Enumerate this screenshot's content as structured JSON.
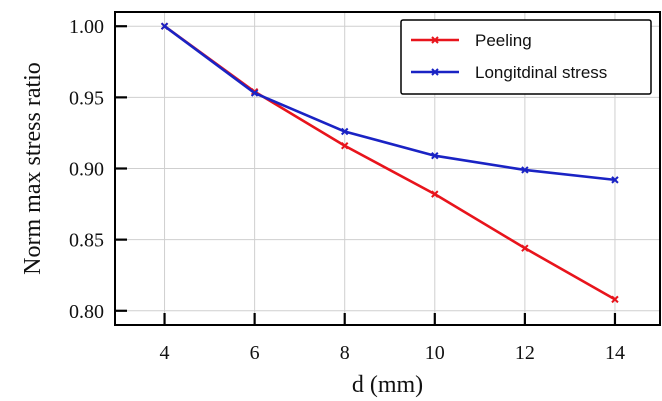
{
  "chart_data": {
    "type": "line",
    "xlabel": "d (mm)",
    "ylabel": "Norm max stress ratio",
    "x": [
      4,
      6,
      8,
      10,
      12,
      14
    ],
    "x_ticks": [
      "4",
      "6",
      "8",
      "10",
      "12",
      "14"
    ],
    "y_ticks": [
      "1.00",
      "0.95",
      "0.90",
      "0.85",
      "0.80"
    ],
    "y_tick_values": [
      1.0,
      0.95,
      0.9,
      0.85,
      0.8
    ],
    "xlim": [
      2.9,
      15.0
    ],
    "ylim": [
      0.79,
      1.01
    ],
    "grid": true,
    "legend_position": "top-right",
    "series": [
      {
        "name": "Peeling",
        "color": "#e8141c",
        "marker": "x",
        "values": [
          1.0,
          0.954,
          0.916,
          0.882,
          0.844,
          0.808
        ]
      },
      {
        "name": "Longitdinal stress",
        "color": "#1a23c4",
        "marker": "x",
        "values": [
          1.0,
          0.953,
          0.926,
          0.909,
          0.899,
          0.892
        ]
      }
    ]
  }
}
